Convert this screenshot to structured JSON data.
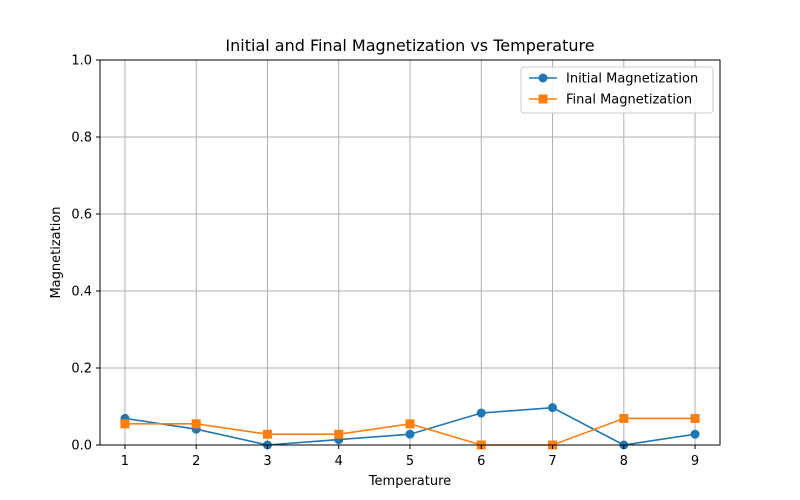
{
  "chart_data": {
    "type": "line",
    "title": "Initial and Final Magnetization vs Temperature",
    "xlabel": "Temperature",
    "ylabel": "Magnetization",
    "x": [
      1,
      2,
      3,
      4,
      5,
      6,
      7,
      8,
      9
    ],
    "xlim": [
      0.65,
      9.35
    ],
    "ylim": [
      0,
      1
    ],
    "xticks": [
      "1",
      "2",
      "3",
      "4",
      "5",
      "6",
      "7",
      "8",
      "9"
    ],
    "yticks": [
      "0.0",
      "0.2",
      "0.4",
      "0.6",
      "0.8",
      "1.0"
    ],
    "grid": true,
    "legend_position": "top-right",
    "series": [
      {
        "name": "Initial Magnetization",
        "marker": "circle",
        "color": "#1f77b4",
        "values": [
          0.069,
          0.041,
          0.0,
          0.014,
          0.028,
          0.083,
          0.097,
          0.0,
          0.028
        ]
      },
      {
        "name": "Final Magnetization",
        "marker": "square",
        "color": "#ff7f0e",
        "values": [
          0.055,
          0.055,
          0.028,
          0.028,
          0.055,
          0.0,
          0.0,
          0.069,
          0.069
        ]
      }
    ]
  }
}
